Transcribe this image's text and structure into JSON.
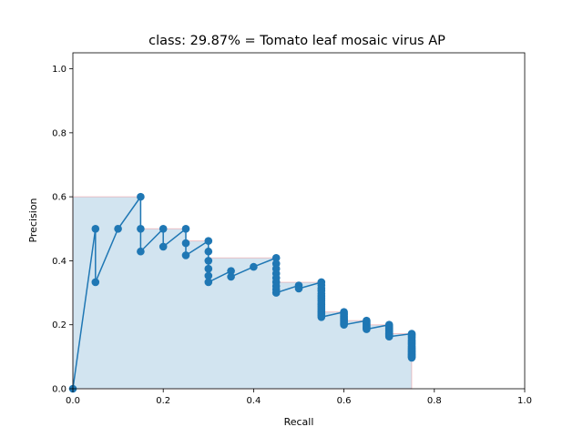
{
  "chart_data": {
    "type": "line",
    "title": "class: 29.87% = Tomato leaf mosaic virus AP",
    "xlabel": "Recall",
    "ylabel": "Precision",
    "xlim": [
      0.0,
      1.0
    ],
    "ylim": [
      0.0,
      1.05
    ],
    "x_ticks": [
      "0.0",
      "0.2",
      "0.4",
      "0.6",
      "0.8",
      "1.0"
    ],
    "y_ticks": [
      "0.0",
      "0.2",
      "0.4",
      "0.6",
      "0.8",
      "1.0"
    ],
    "grid": false,
    "legend": false,
    "colors": {
      "line": "#1f77b4",
      "area_fill": "#1f77b4",
      "area_edge": "#ff0000"
    },
    "series": [
      {
        "values": [
          [
            0.0,
            0.0
          ],
          [
            0.05,
            0.5
          ],
          [
            0.05,
            0.333
          ],
          [
            0.1,
            0.5
          ],
          [
            0.15,
            0.6
          ],
          [
            0.15,
            0.5
          ],
          [
            0.15,
            0.429
          ],
          [
            0.2,
            0.5
          ],
          [
            0.2,
            0.444
          ],
          [
            0.25,
            0.5
          ],
          [
            0.25,
            0.455
          ],
          [
            0.25,
            0.417
          ],
          [
            0.3,
            0.462
          ],
          [
            0.3,
            0.429
          ],
          [
            0.3,
            0.4
          ],
          [
            0.3,
            0.375
          ],
          [
            0.3,
            0.353
          ],
          [
            0.3,
            0.333
          ],
          [
            0.35,
            0.368
          ],
          [
            0.35,
            0.35
          ],
          [
            0.4,
            0.381
          ],
          [
            0.45,
            0.409
          ],
          [
            0.45,
            0.391
          ],
          [
            0.45,
            0.375
          ],
          [
            0.45,
            0.36
          ],
          [
            0.45,
            0.346
          ],
          [
            0.45,
            0.333
          ],
          [
            0.45,
            0.321
          ],
          [
            0.45,
            0.31
          ],
          [
            0.45,
            0.3
          ],
          [
            0.5,
            0.323
          ],
          [
            0.5,
            0.313
          ],
          [
            0.55,
            0.333
          ],
          [
            0.55,
            0.324
          ],
          [
            0.55,
            0.314
          ],
          [
            0.55,
            0.306
          ],
          [
            0.55,
            0.297
          ],
          [
            0.55,
            0.289
          ],
          [
            0.55,
            0.282
          ],
          [
            0.55,
            0.275
          ],
          [
            0.55,
            0.268
          ],
          [
            0.55,
            0.262
          ],
          [
            0.55,
            0.256
          ],
          [
            0.55,
            0.25
          ],
          [
            0.55,
            0.244
          ],
          [
            0.55,
            0.239
          ],
          [
            0.55,
            0.234
          ],
          [
            0.55,
            0.229
          ],
          [
            0.55,
            0.224
          ],
          [
            0.6,
            0.24
          ],
          [
            0.6,
            0.235
          ],
          [
            0.6,
            0.231
          ],
          [
            0.6,
            0.226
          ],
          [
            0.6,
            0.222
          ],
          [
            0.6,
            0.218
          ],
          [
            0.6,
            0.214
          ],
          [
            0.6,
            0.211
          ],
          [
            0.6,
            0.207
          ],
          [
            0.6,
            0.203
          ],
          [
            0.6,
            0.2
          ],
          [
            0.65,
            0.213
          ],
          [
            0.65,
            0.21
          ],
          [
            0.65,
            0.206
          ],
          [
            0.65,
            0.203
          ],
          [
            0.65,
            0.2
          ],
          [
            0.65,
            0.197
          ],
          [
            0.65,
            0.194
          ],
          [
            0.65,
            0.191
          ],
          [
            0.65,
            0.188
          ],
          [
            0.65,
            0.186
          ],
          [
            0.7,
            0.2
          ],
          [
            0.7,
            0.197
          ],
          [
            0.7,
            0.194
          ],
          [
            0.7,
            0.192
          ],
          [
            0.7,
            0.189
          ],
          [
            0.7,
            0.187
          ],
          [
            0.7,
            0.184
          ],
          [
            0.7,
            0.182
          ],
          [
            0.7,
            0.18
          ],
          [
            0.7,
            0.177
          ],
          [
            0.7,
            0.175
          ],
          [
            0.7,
            0.173
          ],
          [
            0.7,
            0.171
          ],
          [
            0.7,
            0.169
          ],
          [
            0.7,
            0.167
          ],
          [
            0.7,
            0.165
          ],
          [
            0.7,
            0.163
          ],
          [
            0.75,
            0.172
          ],
          [
            0.75,
            0.17
          ],
          [
            0.75,
            0.167
          ],
          [
            0.75,
            0.163
          ],
          [
            0.75,
            0.158
          ],
          [
            0.75,
            0.153
          ],
          [
            0.75,
            0.149
          ],
          [
            0.75,
            0.145
          ],
          [
            0.75,
            0.141
          ],
          [
            0.75,
            0.137
          ],
          [
            0.75,
            0.133
          ],
          [
            0.75,
            0.13
          ],
          [
            0.75,
            0.126
          ],
          [
            0.75,
            0.123
          ],
          [
            0.75,
            0.12
          ],
          [
            0.75,
            0.117
          ],
          [
            0.75,
            0.114
          ],
          [
            0.75,
            0.111
          ],
          [
            0.75,
            0.109
          ],
          [
            0.75,
            0.106
          ],
          [
            0.75,
            0.104
          ],
          [
            0.75,
            0.101
          ],
          [
            0.75,
            0.099
          ],
          [
            0.75,
            0.097
          ]
        ]
      }
    ],
    "interpolated_area": [
      [
        0.0,
        0.6
      ],
      [
        0.15,
        0.6
      ],
      [
        0.15,
        0.5
      ],
      [
        0.25,
        0.5
      ],
      [
        0.25,
        0.462
      ],
      [
        0.3,
        0.462
      ],
      [
        0.3,
        0.409
      ],
      [
        0.45,
        0.409
      ],
      [
        0.45,
        0.333
      ],
      [
        0.55,
        0.333
      ],
      [
        0.55,
        0.24
      ],
      [
        0.6,
        0.24
      ],
      [
        0.6,
        0.213
      ],
      [
        0.65,
        0.213
      ],
      [
        0.65,
        0.2
      ],
      [
        0.7,
        0.2
      ],
      [
        0.7,
        0.172
      ],
      [
        0.75,
        0.172
      ],
      [
        0.75,
        0.0
      ]
    ]
  }
}
